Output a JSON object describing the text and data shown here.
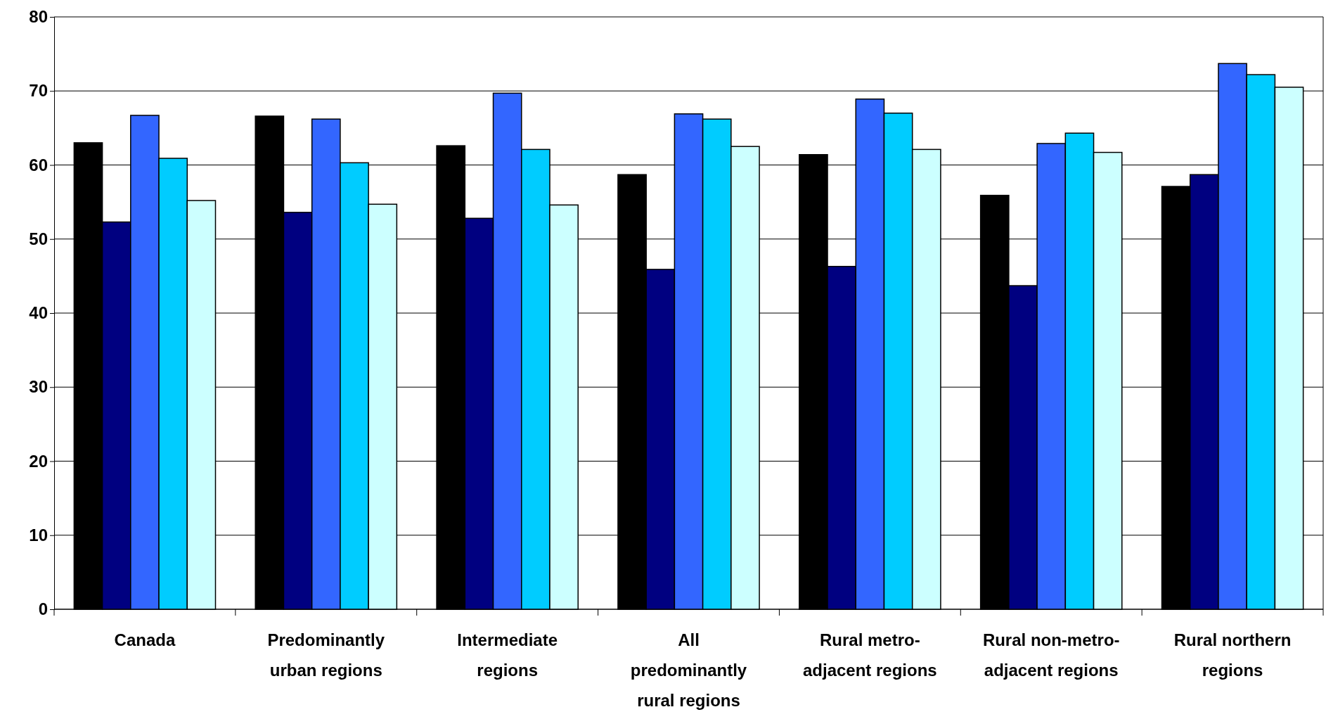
{
  "chart_data": {
    "type": "bar",
    "categories": [
      "Canada",
      "Predominantly urban regions",
      "Intermediate regions",
      "All predominantly rural regions",
      "Rural metro-adjacent regions",
      "Rural non-metro-adjacent regions",
      "Rural northern regions"
    ],
    "series": [
      {
        "color": "#000000",
        "values": [
          63.0,
          66.6,
          62.6,
          58.7,
          61.4,
          55.9,
          57.1
        ]
      },
      {
        "color": "#000080",
        "values": [
          52.3,
          53.6,
          52.8,
          45.9,
          46.3,
          43.7,
          58.7
        ]
      },
      {
        "color": "#3366ff",
        "values": [
          66.7,
          66.2,
          69.7,
          66.9,
          68.9,
          62.9,
          73.7
        ]
      },
      {
        "color": "#00ccff",
        "values": [
          60.9,
          60.3,
          62.1,
          66.2,
          67.0,
          64.3,
          72.2
        ]
      },
      {
        "color": "#ccffff",
        "values": [
          55.2,
          54.7,
          54.6,
          62.5,
          62.1,
          61.7,
          70.5
        ]
      }
    ],
    "ylim": [
      0,
      80
    ],
    "yticks": [
      0,
      10,
      20,
      30,
      40,
      50,
      60,
      70,
      80
    ],
    "grid": "y"
  }
}
